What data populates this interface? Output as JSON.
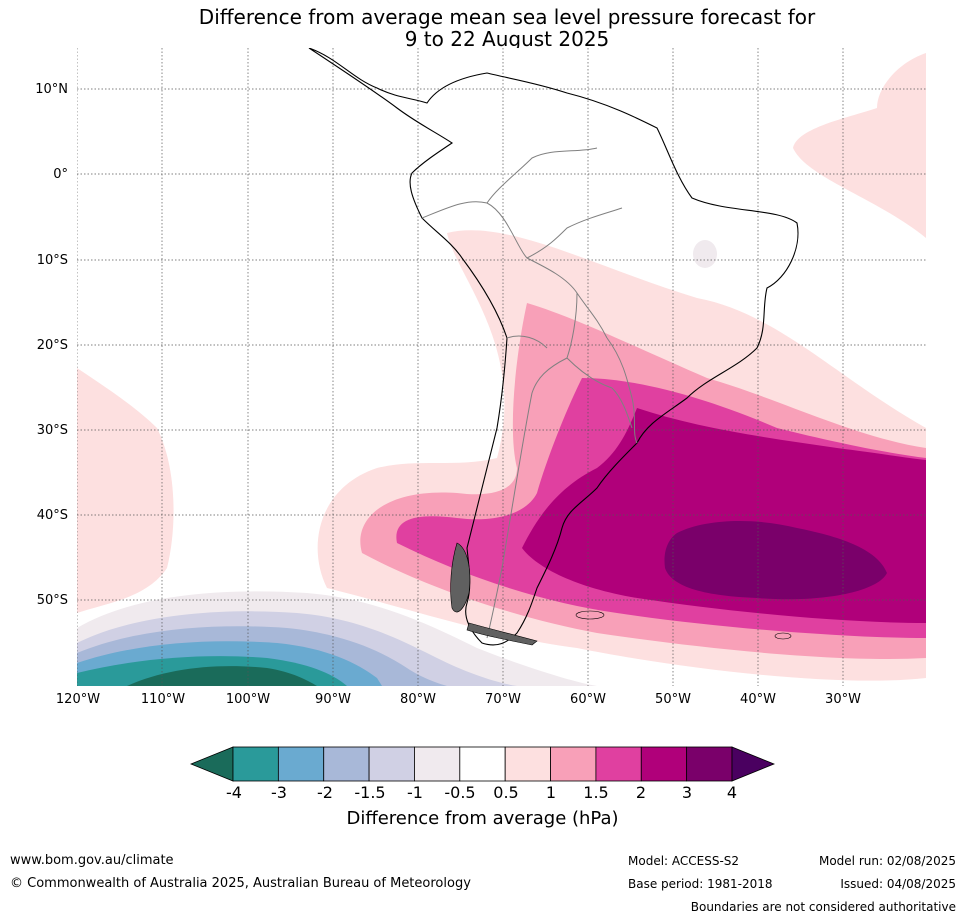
{
  "title": {
    "line1": "Difference from average mean sea level pressure forecast for",
    "line2": "9 to 22 August 2025"
  },
  "map": {
    "lat_ticks": [
      "10°N",
      "0°",
      "10°S",
      "20°S",
      "30°S",
      "40°S",
      "50°S"
    ],
    "lon_ticks": [
      "120°W",
      "110°W",
      "100°W",
      "90°W",
      "80°W",
      "70°W",
      "60°W",
      "50°W",
      "40°W",
      "30°W"
    ],
    "gridlines": "dotted",
    "region": "South America",
    "colors": {
      "land_outline": "#000000",
      "borders": "#808080",
      "ocean": "#ffffff"
    }
  },
  "colorbar": {
    "label": "Difference from average (hPa)",
    "ticks": [
      "-4",
      "-3",
      "-2",
      "-1.5",
      "-1",
      "-0.5",
      "0.5",
      "1",
      "1.5",
      "2",
      "3",
      "4"
    ],
    "colors": [
      "#1a6b5a",
      "#2a9a9a",
      "#6aaad0",
      "#a8b8d8",
      "#d0d0e4",
      "#f0eaee",
      "#ffffff",
      "#fde0e0",
      "#f8a0b8",
      "#e040a0",
      "#b0007a",
      "#7a006a",
      "#4a0060"
    ]
  },
  "footer": {
    "website": "www.bom.gov.au/climate",
    "copyright": "© Commonwealth of Australia 2025, Australian Bureau of Meteorology",
    "model": "Model: ACCESS-S2",
    "base_period": "Base period: 1981-2018",
    "model_run": "Model run: 02/08/2025",
    "issued": "Issued: 04/08/2025",
    "boundaries": "Boundaries are not considered authoritative"
  }
}
